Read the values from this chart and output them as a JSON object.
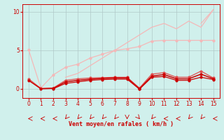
{
  "x": [
    0,
    1,
    2,
    3,
    4,
    5,
    6,
    7,
    8,
    9,
    10,
    11,
    12,
    13,
    14,
    15
  ],
  "line_lightest_top": [
    null,
    null,
    null,
    null,
    null,
    null,
    null,
    null,
    null,
    null,
    null,
    null,
    null,
    null,
    8.5,
    10.3
  ],
  "line_light1": [
    5.1,
    0.1,
    1.8,
    2.8,
    3.2,
    4.0,
    4.5,
    5.0,
    5.2,
    5.5,
    6.2,
    6.3,
    6.3,
    6.3,
    6.3,
    6.3
  ],
  "line_light2": [
    null,
    null,
    null,
    1.5,
    2.0,
    3.0,
    4.0,
    5.0,
    6.0,
    7.0,
    8.0,
    8.5,
    7.8,
    8.8,
    8.0,
    10.3
  ],
  "line_med1": [
    1.3,
    0.05,
    0.1,
    1.1,
    1.3,
    1.4,
    1.45,
    1.5,
    1.5,
    0.1,
    1.9,
    2.1,
    1.5,
    1.5,
    2.3,
    1.4
  ],
  "line_med2": [
    1.1,
    0.0,
    0.05,
    0.9,
    1.1,
    1.25,
    1.35,
    1.4,
    1.4,
    0.0,
    1.65,
    1.85,
    1.3,
    1.3,
    1.9,
    1.3
  ],
  "line_dark": [
    null,
    null,
    0.0,
    0.7,
    0.9,
    1.1,
    1.2,
    1.25,
    1.25,
    -0.05,
    1.5,
    1.6,
    1.1,
    1.1,
    1.5,
    1.2
  ],
  "bg_color": "#d0f0ec",
  "grid_color": "#b0c8c8",
  "color_lightest": "#f4b8b8",
  "color_light": "#f0a0a0",
  "color_med": "#e05050",
  "color_dark": "#cc0000",
  "xlabel": "Vent moyen/en rafales ( km/h )",
  "ylim": [
    -1.2,
    11.0
  ],
  "xlim": [
    -0.5,
    15.5
  ],
  "yticks": [
    0,
    5,
    10
  ],
  "xticks": [
    0,
    1,
    2,
    3,
    4,
    5,
    6,
    7,
    8,
    9,
    10,
    11,
    12,
    13,
    14,
    15
  ],
  "wind_dirs": [
    270,
    270,
    270,
    315,
    315,
    315,
    315,
    315,
    0,
    45,
    315,
    270,
    270,
    315,
    315,
    270
  ]
}
